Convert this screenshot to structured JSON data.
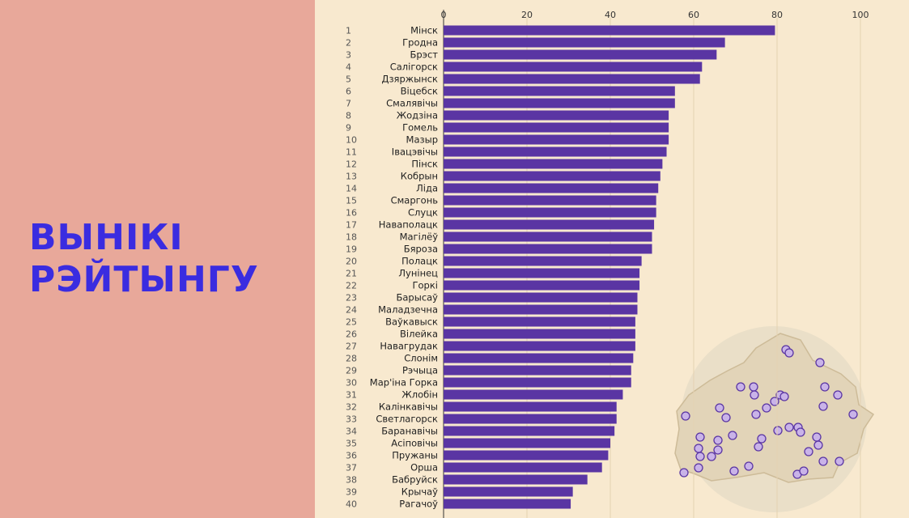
{
  "title": {
    "line1": "ВЫНІКІ",
    "line2": "РЭЙТЫНГУ"
  },
  "colors": {
    "bar": "#5a35a3",
    "left_bg": "#e8a89a",
    "right_bg": "#f8e9cf",
    "title": "#3a2ce0",
    "map_fill": "#e8dcc2",
    "dot": "#c9b3e8",
    "dot_stroke": "#5a35a3"
  },
  "chart_data": {
    "type": "bar",
    "orientation": "horizontal",
    "title": "",
    "xlabel": "",
    "ylabel": "",
    "xlim": [
      0,
      100
    ],
    "xticks": [
      0,
      20,
      40,
      60,
      80,
      100
    ],
    "grid": true,
    "ranks": [
      "1",
      "2",
      "3",
      "4",
      "5",
      "6",
      "7",
      "8",
      "9",
      "10",
      "11",
      "12",
      "13",
      "14",
      "15",
      "16",
      "17",
      "18",
      "19",
      "20",
      "21",
      "22",
      "23",
      "24",
      "25",
      "26",
      "27",
      "28",
      "29",
      "30",
      "31",
      "32",
      "33",
      "34",
      "35",
      "36",
      "37",
      "38",
      "39",
      "40"
    ],
    "categories": [
      "Мінск",
      "Гродна",
      "Брэст",
      "Салігорск",
      "Дзяржынск",
      "Віцебск",
      "Смалявічы",
      "Жодзіна",
      "Гомель",
      "Мазыр",
      "Івацэвічы",
      "Пінск",
      "Кобрын",
      "Ліда",
      "Смаргонь",
      "Слуцк",
      "Наваполацк",
      "Магілёў",
      "Бяроза",
      "Полацк",
      "Лунінец",
      "Горкі",
      "Барысаў",
      "Маладзечна",
      "Ваўкавыск",
      "Вілейка",
      "Навагрудак",
      "Слонім",
      "Рэчыца",
      "Мар'іна Горка",
      "Жлобін",
      "Калінкавічы",
      "Светлагорск",
      "Баранавічы",
      "Асіповічы",
      "Пружаны",
      "Орша",
      "Бабруйск",
      "Крычаў",
      "Рагачоў"
    ],
    "values": [
      79.5,
      67.5,
      65.5,
      62,
      61.5,
      55.5,
      55.5,
      54,
      54,
      54,
      53.5,
      52.5,
      52,
      51.5,
      51,
      51,
      50.5,
      50,
      50,
      47.5,
      47,
      47,
      46.5,
      46.5,
      46,
      46,
      46,
      45.5,
      45,
      45,
      43,
      41.5,
      41.5,
      41,
      40,
      39.5,
      38,
      34.5,
      31,
      30.5
    ]
  }
}
